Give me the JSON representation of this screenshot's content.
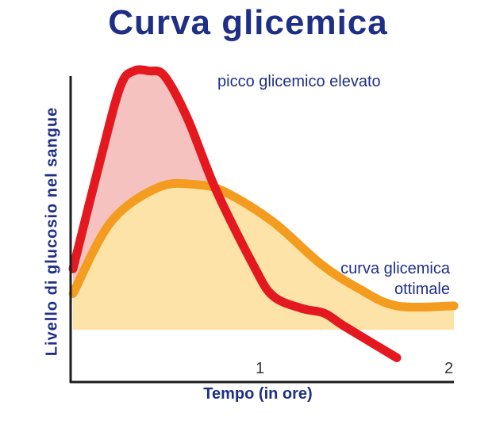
{
  "title": "Curva glicemica",
  "chart_data": {
    "type": "area",
    "xlabel": "Tempo (in ore)",
    "ylabel": "Livello di glucosio nel sangue",
    "x_ticks": [
      "1",
      "2"
    ],
    "xlim": [
      0,
      2
    ],
    "ylim": [
      0,
      10
    ],
    "grid": false,
    "legend": "none",
    "series": [
      {
        "x": [
          0,
          0.15,
          0.25,
          0.32,
          0.4,
          0.48,
          0.6,
          0.75,
          0.95,
          1.05,
          1.2,
          1.32,
          1.42,
          1.7
        ],
        "values": [
          2.4,
          7.0,
          9.8,
          10.4,
          10.4,
          10.2,
          8.5,
          5.6,
          2.5,
          1.3,
          0.8,
          0.6,
          0.1,
          -1.2
        ],
        "color": "#e3191f",
        "fill": "#f5c2c0"
      },
      {
        "x": [
          0,
          0.2,
          0.45,
          0.65,
          0.8,
          1.05,
          1.3,
          1.5,
          1.7,
          2.0
        ],
        "values": [
          1.4,
          4.3,
          5.7,
          5.8,
          5.5,
          4.3,
          2.6,
          1.6,
          0.9,
          0.9
        ],
        "color": "#f39c1f",
        "fill": "#fde3a7"
      }
    ],
    "annotations": {
      "peak": "picco glicemico elevato",
      "optimal_line1": "curva glicemica",
      "optimal_line2": "ottimale"
    }
  }
}
